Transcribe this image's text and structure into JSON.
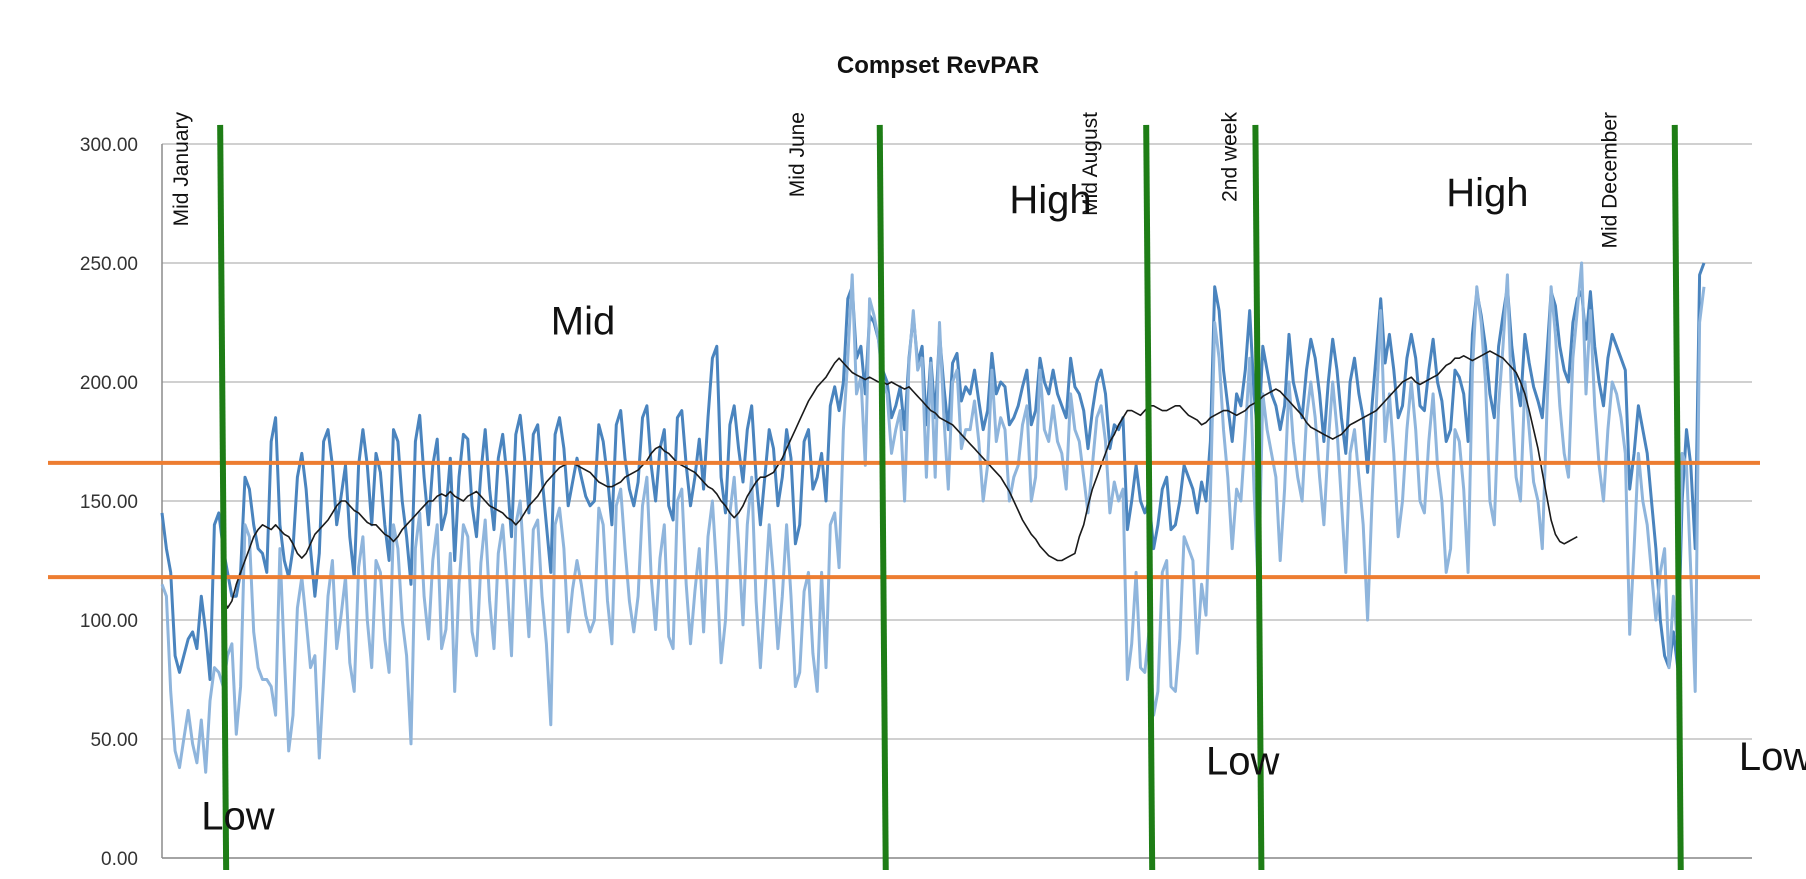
{
  "chart_data": {
    "type": "line",
    "title": "Compset RevPAR",
    "xlabel": "",
    "ylabel": "",
    "ylim": [
      0,
      300
    ],
    "x_range": [
      1,
      365
    ],
    "y_ticks": [
      "0.00",
      "50.00",
      "100.00",
      "150.00",
      "200.00",
      "250.00",
      "300.00"
    ],
    "grid": true,
    "legend": "none",
    "colors": {
      "series_dark": "#4a84be",
      "series_light": "#8fb5dc",
      "trend": "#1a1a1a",
      "threshold": "#ed7d31",
      "season_boundary": "#1e7d16"
    },
    "season_boundaries_day": [
      15,
      166,
      227,
      252,
      348
    ],
    "threshold_lines": [
      118,
      166
    ],
    "markers": [
      {
        "label": "Mid January",
        "x": 7
      },
      {
        "label": "Mid June",
        "x": 148
      },
      {
        "label": "Mid August",
        "x": 215
      },
      {
        "label": "2nd  week",
        "x": 247
      },
      {
        "label": "Mid December",
        "x": 334
      }
    ],
    "season_labels": [
      {
        "label": "Low",
        "x": 10,
        "y": 12
      },
      {
        "label": "Mid",
        "x": 90,
        "y": 220
      },
      {
        "label": "High",
        "x": 195,
        "y": 271
      },
      {
        "label": "Low",
        "x": 240,
        "y": 35
      },
      {
        "label": "High",
        "x": 295,
        "y": 274
      },
      {
        "label": "Low",
        "x": 362,
        "y": 37
      }
    ],
    "series": [
      {
        "values": [
          115,
          110,
          70,
          45,
          38,
          50,
          62,
          48,
          40,
          58,
          36,
          66,
          80,
          78,
          72,
          85,
          90,
          52,
          72,
          140,
          135,
          95,
          80,
          75,
          75,
          72,
          60,
          130,
          85,
          45,
          60,
          105,
          118,
          100,
          80,
          85,
          42,
          75,
          110,
          125,
          88,
          102,
          118,
          82,
          70,
          122,
          135,
          100,
          80,
          125,
          120,
          92,
          78,
          140,
          130,
          100,
          85,
          48,
          130,
          145,
          110,
          92,
          125,
          140,
          88,
          96,
          128,
          70,
          115,
          140,
          135,
          95,
          85,
          124,
          142,
          108,
          88,
          128,
          140,
          115,
          85,
          140,
          150,
          120,
          93,
          138,
          142,
          110,
          90,
          56,
          140,
          147,
          130,
          95,
          113,
          125,
          115,
          102,
          95,
          100,
          147,
          140,
          108,
          90,
          148,
          155,
          130,
          108,
          95,
          110,
          148,
          160,
          118,
          96,
          126,
          140,
          93,
          88,
          150,
          155,
          115,
          90,
          112,
          130,
          95,
          135,
          150,
          120,
          82,
          100,
          145,
          160,
          132,
          98,
          140,
          160,
          108,
          80,
          110,
          140,
          118,
          88,
          110,
          140,
          110,
          72,
          78,
          112,
          120,
          86,
          70,
          120,
          80,
          140,
          145,
          122,
          180,
          210,
          245,
          195,
          202,
          165,
          235,
          228,
          218,
          200,
          195,
          170,
          180,
          188,
          150,
          208,
          230,
          205,
          210,
          160,
          208,
          160,
          225,
          185,
          155,
          200,
          205,
          172,
          180,
          180,
          192,
          175,
          150,
          165,
          205,
          175,
          185,
          180,
          150,
          160,
          165,
          182,
          190,
          150,
          160,
          205,
          180,
          175,
          190,
          175,
          170,
          155,
          195,
          180,
          175,
          160,
          145,
          165,
          185,
          190,
          175,
          145,
          158,
          150,
          155,
          75,
          90,
          120,
          80,
          78,
          96,
          60,
          70,
          120,
          125,
          72,
          70,
          92,
          135,
          130,
          125,
          86,
          115,
          102,
          152,
          225,
          210,
          180,
          160,
          130,
          155,
          150,
          178,
          210,
          155,
          112,
          195,
          180,
          170,
          160,
          125,
          155,
          200,
          175,
          160,
          150,
          185,
          200,
          185,
          160,
          140,
          175,
          200,
          180,
          150,
          120,
          170,
          180,
          160,
          140,
          100,
          150,
          190,
          230,
          175,
          195,
          170,
          135,
          150,
          180,
          200,
          180,
          150,
          145,
          175,
          195,
          165,
          150,
          120,
          130,
          180,
          175,
          155,
          120,
          205,
          240,
          225,
          200,
          150,
          140,
          190,
          215,
          245,
          190,
          160,
          150,
          200,
          180,
          158,
          150,
          130,
          185,
          240,
          220,
          190,
          170,
          160,
          210,
          230,
          250,
          195,
          230,
          190,
          165,
          150,
          180,
          200,
          195,
          185,
          170,
          94,
          130,
          170,
          150,
          140,
          120,
          100,
          120,
          130,
          80,
          110,
          90,
          170,
          165,
          120,
          70,
          225,
          240
        ]
      },
      {
        "values": [
          145,
          130,
          120,
          85,
          78,
          85,
          92,
          95,
          88,
          110,
          95,
          75,
          140,
          145,
          130,
          120,
          110,
          110,
          120,
          160,
          155,
          140,
          130,
          128,
          120,
          175,
          185,
          140,
          125,
          118,
          130,
          160,
          170,
          155,
          130,
          110,
          128,
          175,
          180,
          165,
          140,
          152,
          165,
          135,
          118,
          165,
          180,
          165,
          140,
          170,
          162,
          140,
          125,
          180,
          175,
          150,
          135,
          115,
          175,
          186,
          160,
          140,
          165,
          176,
          138,
          145,
          168,
          125,
          160,
          178,
          176,
          148,
          135,
          162,
          180,
          155,
          138,
          168,
          178,
          160,
          135,
          178,
          186,
          168,
          145,
          178,
          182,
          160,
          140,
          120,
          178,
          185,
          172,
          148,
          158,
          168,
          160,
          152,
          148,
          150,
          182,
          175,
          160,
          140,
          182,
          188,
          168,
          155,
          148,
          158,
          185,
          190,
          165,
          150,
          172,
          180,
          148,
          142,
          185,
          188,
          165,
          148,
          160,
          176,
          155,
          185,
          210,
          215,
          160,
          145,
          182,
          190,
          172,
          158,
          180,
          190,
          160,
          140,
          160,
          180,
          172,
          148,
          160,
          180,
          168,
          132,
          140,
          175,
          180,
          155,
          160,
          170,
          150,
          190,
          198,
          188,
          200,
          235,
          240,
          210,
          215,
          195,
          228,
          225,
          218,
          205,
          200,
          185,
          190,
          198,
          180,
          210,
          228,
          208,
          215,
          182,
          210,
          185,
          220,
          198,
          180,
          208,
          212,
          192,
          198,
          195,
          205,
          192,
          180,
          188,
          212,
          195,
          200,
          198,
          182,
          185,
          190,
          198,
          205,
          182,
          188,
          210,
          200,
          195,
          205,
          195,
          190,
          185,
          210,
          198,
          195,
          188,
          172,
          188,
          200,
          205,
          195,
          172,
          182,
          180,
          185,
          138,
          150,
          165,
          150,
          145,
          150,
          130,
          140,
          155,
          160,
          138,
          140,
          150,
          165,
          160,
          155,
          145,
          158,
          150,
          175,
          240,
          230,
          205,
          190,
          175,
          195,
          190,
          205,
          230,
          195,
          175,
          215,
          205,
          195,
          190,
          180,
          190,
          220,
          200,
          192,
          185,
          205,
          218,
          210,
          195,
          175,
          200,
          218,
          205,
          185,
          170,
          200,
          210,
          195,
          185,
          162,
          190,
          212,
          235,
          208,
          220,
          205,
          185,
          190,
          210,
          220,
          210,
          190,
          188,
          205,
          218,
          200,
          192,
          175,
          180,
          205,
          202,
          195,
          175,
          220,
          238,
          228,
          215,
          195,
          185,
          215,
          228,
          240,
          215,
          200,
          190,
          220,
          208,
          198,
          192,
          185,
          210,
          238,
          232,
          215,
          205,
          200,
          225,
          235,
          238,
          218,
          238,
          215,
          200,
          190,
          210,
          220,
          215,
          210,
          205,
          155,
          170,
          190,
          180,
          170,
          150,
          130,
          100,
          85,
          80,
          95,
          80,
          150,
          180,
          165,
          130,
          245,
          250
        ]
      },
      {
        "values": [
          null,
          null,
          null,
          null,
          null,
          null,
          null,
          null,
          null,
          null,
          null,
          null,
          null,
          null,
          110,
          105,
          108,
          115,
          120,
          125,
          130,
          135,
          138,
          140,
          139,
          138,
          140,
          138,
          136,
          135,
          132,
          128,
          126,
          128,
          132,
          136,
          138,
          140,
          142,
          145,
          148,
          150,
          150,
          148,
          146,
          145,
          143,
          141,
          140,
          140,
          138,
          136,
          135,
          133,
          135,
          138,
          140,
          142,
          144,
          146,
          148,
          150,
          150,
          152,
          153,
          152,
          154,
          152,
          151,
          150,
          152,
          153,
          154,
          152,
          150,
          148,
          147,
          146,
          145,
          143,
          142,
          140,
          142,
          145,
          148,
          150,
          152,
          155,
          158,
          160,
          162,
          164,
          165,
          166,
          166,
          165,
          164,
          163,
          162,
          160,
          158,
          157,
          156,
          156,
          157,
          158,
          160,
          161,
          162,
          163,
          165,
          167,
          170,
          172,
          173,
          171,
          170,
          168,
          166,
          165,
          164,
          163,
          162,
          160,
          158,
          156,
          155,
          153,
          150,
          148,
          145,
          143,
          145,
          148,
          152,
          155,
          158,
          160,
          160,
          161,
          162,
          165,
          168,
          172,
          176,
          180,
          184,
          188,
          192,
          195,
          198,
          200,
          202,
          205,
          208,
          210,
          208,
          206,
          204,
          203,
          202,
          201,
          202,
          201,
          200,
          200,
          199,
          200,
          199,
          198,
          197,
          198,
          196,
          194,
          192,
          190,
          188,
          187,
          185,
          184,
          183,
          182,
          180,
          178,
          176,
          174,
          172,
          170,
          168,
          166,
          164,
          162,
          160,
          157,
          154,
          150,
          146,
          142,
          139,
          136,
          134,
          131,
          129,
          127,
          126,
          125,
          125,
          126,
          127,
          128,
          135,
          140,
          148,
          155,
          160,
          165,
          170,
          175,
          178,
          182,
          185,
          188,
          188,
          187,
          186,
          188,
          190,
          190,
          189,
          188,
          188,
          189,
          190,
          190,
          188,
          186,
          185,
          184,
          182,
          183,
          185,
          186,
          187,
          188,
          188,
          187,
          186,
          187,
          188,
          190,
          191,
          192,
          194,
          195,
          196,
          197,
          196,
          194,
          192,
          190,
          188,
          186,
          183,
          181,
          180,
          179,
          178,
          177,
          176,
          177,
          178,
          180,
          182,
          183,
          184,
          185,
          186,
          187,
          188,
          190,
          192,
          194,
          196,
          198,
          200,
          201,
          202,
          200,
          199,
          200,
          201,
          202,
          203,
          205,
          207,
          208,
          210,
          210,
          211,
          210,
          209,
          210,
          211,
          212,
          213,
          212,
          211,
          210,
          208,
          206,
          204,
          200,
          195,
          188,
          180,
          172,
          162,
          152,
          142,
          136,
          133,
          132,
          133,
          134,
          135
        ]
      }
    ]
  }
}
